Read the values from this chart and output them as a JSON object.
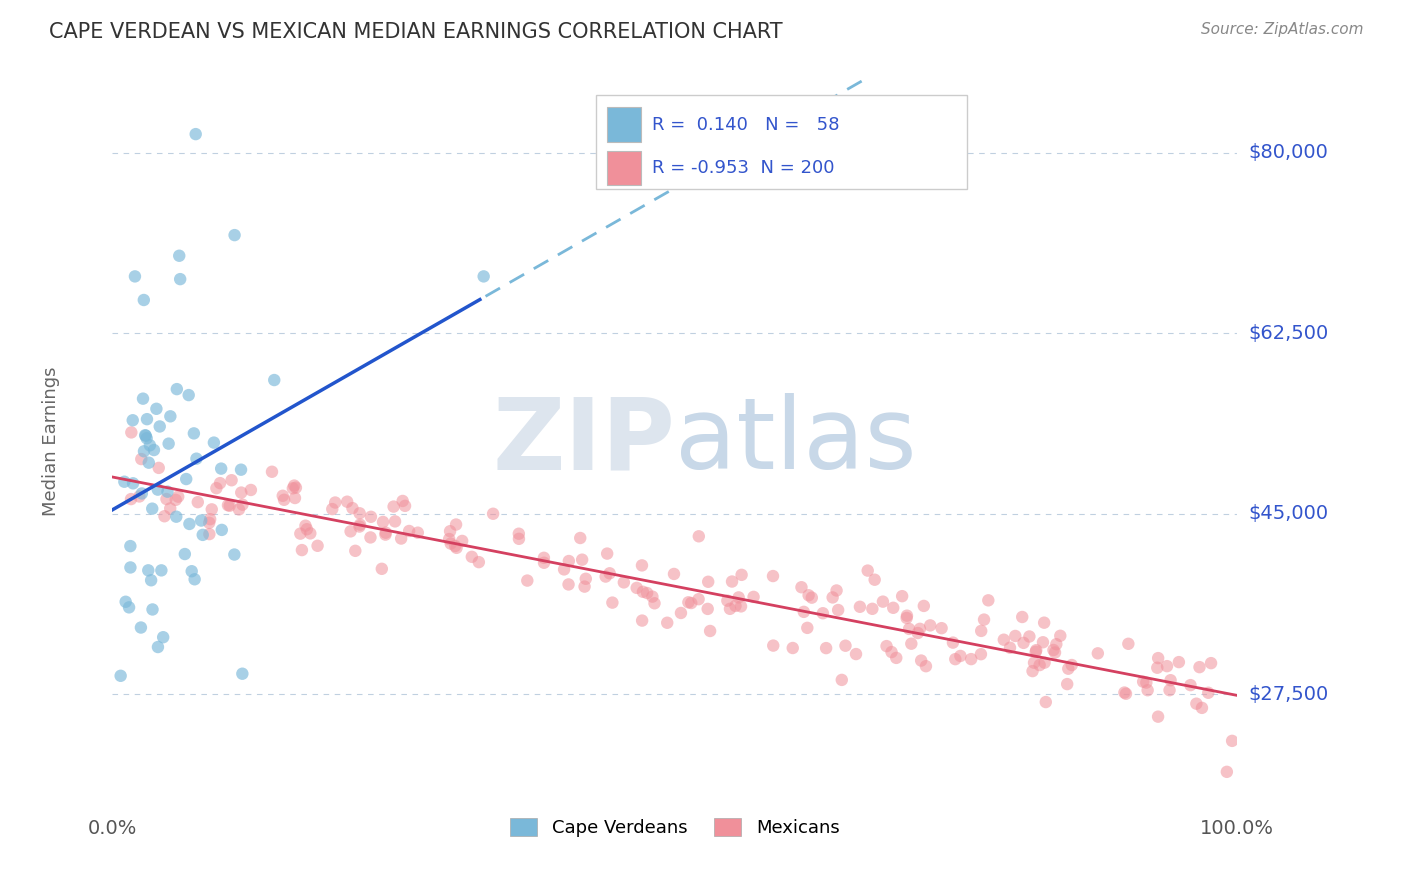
{
  "title": "CAPE VERDEAN VS MEXICAN MEDIAN EARNINGS CORRELATION CHART",
  "source_text": "Source: ZipAtlas.com",
  "ylabel": "Median Earnings",
  "x_min": 0.0,
  "x_max": 1.0,
  "y_min": 17000,
  "y_max": 87000,
  "yticks": [
    27500,
    45000,
    62500,
    80000
  ],
  "ytick_labels": [
    "$27,500",
    "$45,000",
    "$62,500",
    "$80,000"
  ],
  "xticks": [
    0.0,
    1.0
  ],
  "xtick_labels": [
    "0.0%",
    "100.0%"
  ],
  "cv_R": 0.14,
  "cv_N": 58,
  "mex_R": -0.953,
  "mex_N": 200,
  "cv_color": "#7ab8d9",
  "mex_color": "#f0909a",
  "cv_line_color": "#2255cc",
  "cv_line_dash_color": "#7ab8d9",
  "mex_line_color": "#d44060",
  "title_color": "#444444",
  "axis_label_color": "#3355cc",
  "legend_label_cv": "Cape Verdeans",
  "legend_label_mex": "Mexicans",
  "watermark_zip": "ZIP",
  "watermark_atlas": "atlas",
  "background_color": "#ffffff",
  "grid_color": "#c0d0e0",
  "cv_seed": 42,
  "mex_seed": 99
}
